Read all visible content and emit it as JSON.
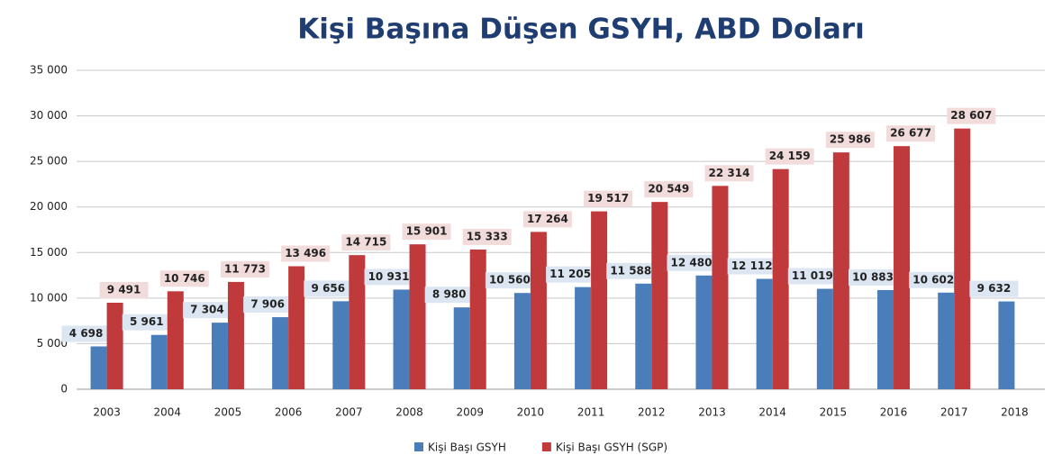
{
  "chart_data": {
    "type": "bar",
    "title": "Kişi Başına Düşen GSYH, ABD Doları",
    "categories": [
      "2003",
      "2004",
      "2005",
      "2006",
      "2007",
      "2008",
      "2009",
      "2010",
      "2011",
      "2012",
      "2013",
      "2014",
      "2015",
      "2016",
      "2017",
      "2018"
    ],
    "series": [
      {
        "name": "Kişi Başı GSYH",
        "color": "#4a7ebb",
        "values": [
          4698,
          5961,
          7304,
          7906,
          9656,
          10931,
          8980,
          10560,
          11205,
          11588,
          12480,
          12112,
          11019,
          10883,
          10602,
          9632
        ],
        "value_labels": [
          "4 698",
          "5 961",
          "7 304",
          "7 906",
          "9 656",
          "10 931",
          "8 980",
          "10 560",
          "11 205",
          "11 588",
          "12 480",
          "12 112",
          "11 019",
          "10 883",
          "10 602",
          "9 632"
        ]
      },
      {
        "name": "Kişi Başı GSYH (SGP)",
        "color": "#c0393b",
        "values": [
          9491,
          10746,
          11773,
          13496,
          14715,
          15901,
          15333,
          17264,
          19517,
          20549,
          22314,
          24159,
          25986,
          26677,
          28607,
          null
        ],
        "value_labels": [
          "9 491",
          "10 746",
          "11 773",
          "13 496",
          "14 715",
          "15 901",
          "15 333",
          "17 264",
          "19 517",
          "20 549",
          "22 314",
          "24 159",
          "25 986",
          "26 677",
          "28 607",
          null
        ]
      }
    ],
    "ylim": [
      0,
      35000
    ],
    "yticks": [
      0,
      {
        "value": 5000,
        "label": "5 000"
      },
      {
        "value": 10000,
        "label": "10 000"
      },
      {
        "value": 15000,
        "label": "15 000"
      },
      {
        "value": 20000,
        "label": "20 000"
      },
      {
        "value": 25000,
        "label": "25 000"
      },
      {
        "value": 30000,
        "label": "30 000"
      },
      {
        "value": 35000,
        "label": "35 000"
      }
    ],
    "grid": true,
    "legend": "bottom"
  }
}
